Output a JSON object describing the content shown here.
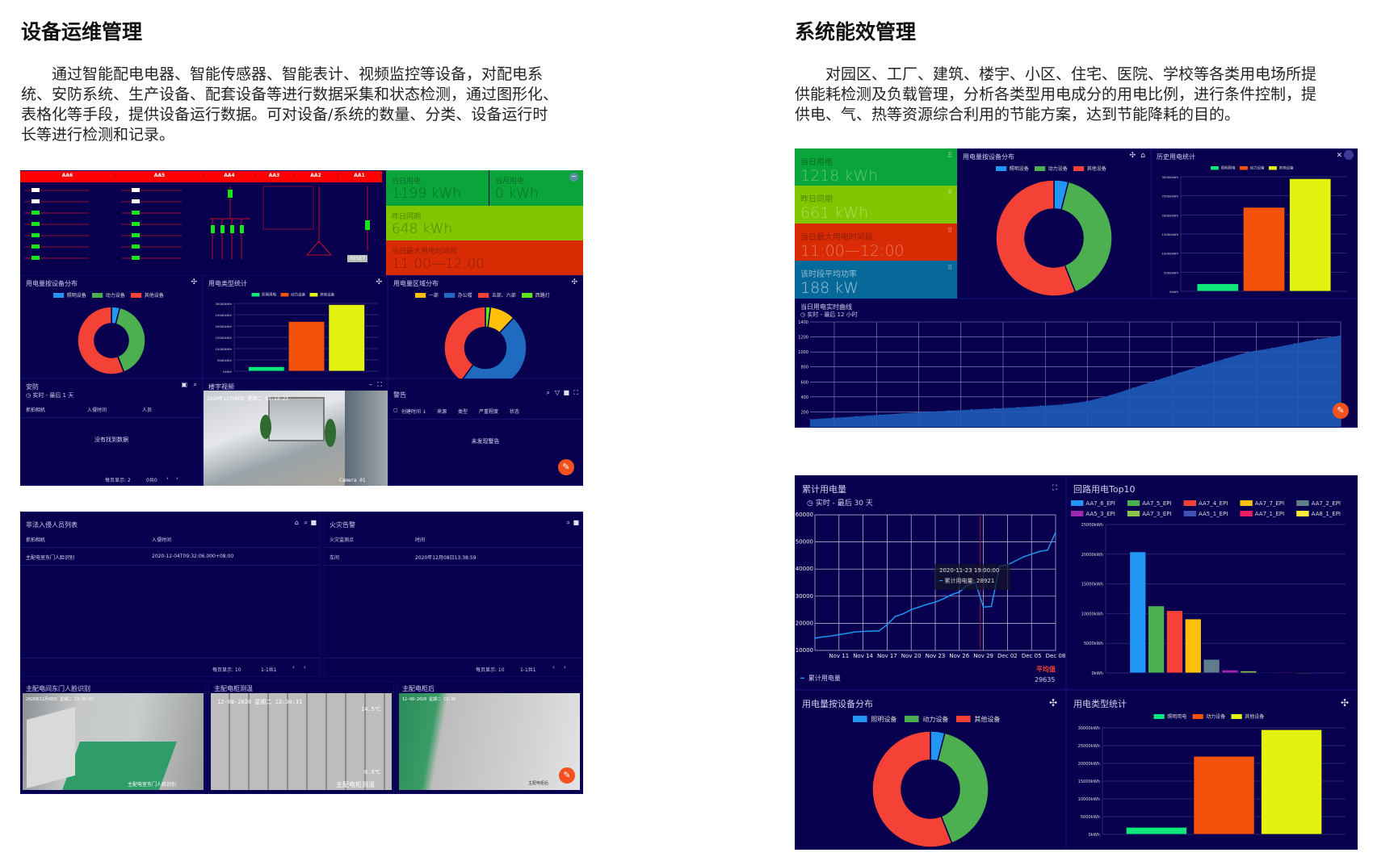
{
  "left": {
    "title": "设备运维管理",
    "paragraph": [
      "通过智能配电电器、智能传感器、智能表计、视频监控等设备，对配电系",
      "统、安防系统、生产设备、配套设备等进行数据采集和状态检测，通过图形化、",
      "表格化等手段，提供设备运行数据。可对设备/系统的数量、分类、设备运行时",
      "长等进行检测和记录。"
    ],
    "dashboard1": {
      "schematic_headers": [
        "AA6",
        "AA5",
        "AA4",
        "AA3",
        "AA2",
        "AA1"
      ],
      "schematic_reset": "RESET",
      "kpis": [
        {
          "label": "当日用电",
          "value": "1199 kWh"
        },
        {
          "label": "当月用电",
          "value": "0 kWh"
        },
        {
          "label": "昨日同期",
          "value": "648 kWh"
        },
        {
          "label": "当日最大用电时间段",
          "value": "11:00—12:00"
        }
      ],
      "panels": {
        "device_dist": "用电量按设备分布",
        "type_stats": "用电类型统计",
        "region_dist": "用电量区域分布",
        "security": {
          "title": "安防",
          "range": "实时 - 最后 1 天",
          "columns": [
            "抓拍相机",
            "入侵时间",
            "人员"
          ],
          "empty": "没有找到数据",
          "per_page": "每页显示: 2",
          "count": "0共0"
        },
        "video": {
          "title": "楼宇视频",
          "timestamp": "2020年12月08日 星期二 13:13:23",
          "camera": "Camera 01"
        },
        "alerts": {
          "title": "警告",
          "columns": [
            "创建时间 ↓",
            "来源",
            "类型",
            "严重程度",
            "状态"
          ],
          "empty": "未发现警告"
        }
      }
    },
    "dashboard2": {
      "intrusion": {
        "title": "非法入侵人员列表",
        "columns": [
          "抓拍相机",
          "入侵时间"
        ],
        "rows": [
          [
            "主配电室东门人脸识别",
            "2020-12-04T09:32:06.000+08:00"
          ]
        ],
        "per_page": "每页显示: 10",
        "range": "1-1共1"
      },
      "fire": {
        "title": "火灾告警",
        "columns": [
          "火灾监测点",
          "时间"
        ],
        "rows": [
          [
            "车间",
            "2020年12月08日13:38:59"
          ]
        ],
        "per_page": "每页显示: 10",
        "range": "1-1共1"
      },
      "cameras": [
        {
          "title": "主配电间东门人脸识别",
          "timestamp": "2020年12月08日 星期二 13:35:07",
          "caption": "主配电室东门人脸识别"
        },
        {
          "title": "主配电柜测温",
          "timestamp": "12-08-2020 星期二 13:34:31",
          "temp_high": "14.5℃",
          "temp_low": "6.9℃",
          "caption": "主配电柜测温"
        },
        {
          "title": "主配电柜后",
          "timestamp": "12-08-2020 星期二 13:36",
          "caption": "主配电柜后"
        }
      ]
    }
  },
  "right": {
    "title": "系统能效管理",
    "paragraph": [
      "对园区、工厂、建筑、楼宇、小区、住宅、医院、学校等各类用电场所提",
      "供能耗检测及负载管理，分析各类型用电成分的用电比例，进行条件控制，提",
      "供电、气、热等资源综合利用的节能方案，达到节能降耗的目的。"
    ],
    "dashboard1": {
      "kpis": [
        {
          "label": "当日用电",
          "value": "1218 kWh",
          "color": "#0aa53a"
        },
        {
          "label": "昨日同期",
          "value": "661 kWh",
          "color": "#80c700"
        },
        {
          "label": "当日最大用电时间段",
          "value": "11:00—12:00",
          "color": "#d92c05"
        },
        {
          "label": "该时段平均功率",
          "value": "188 kW",
          "color": "#06699a"
        }
      ],
      "device_dist": "用电量按设备分布",
      "history": "历史用电统计",
      "realtime": "当日用电实时曲线",
      "realtime_range": "实时 - 最后 12 小时"
    },
    "dashboard2": {
      "cumulative": "累计用电量",
      "cumulative_range": "实时 - 最后 30 天",
      "tooltip_time": "2020-11-23 19:00:00",
      "tooltip_label": "累计用电量:",
      "tooltip_value": "28921",
      "legend": "累计用电量",
      "avg_label": "平均值",
      "avg_value": "29635",
      "top10": "回路用电Top10",
      "device_dist": "用电量按设备分布",
      "type_stats": "用电类型统计"
    }
  },
  "colors": {
    "dashboard_bg": "#08004e",
    "fab": "#f4511e",
    "schematic_red": "#ff0000"
  },
  "chart_data": [
    {
      "id": "l-device",
      "type": "pie",
      "donut": true,
      "categories": [
        "照明设备",
        "动力设备",
        "其他设备"
      ],
      "values": [
        4,
        40,
        56
      ],
      "colors": [
        "#2196f3",
        "#4caf50",
        "#f44336"
      ],
      "legend": "top"
    },
    {
      "id": "l-type",
      "type": "bar",
      "categories": [
        "照明用电",
        "动力设备",
        "其他设备"
      ],
      "values": [
        2000,
        22000,
        29500
      ],
      "colors": [
        "#0ee87a",
        "#f4510b",
        "#e4f20f"
      ],
      "ylim": [
        0,
        30000
      ],
      "ytick_step": 5000,
      "yunit": "kWh",
      "legend": "top",
      "grid": true
    },
    {
      "id": "l-region",
      "type": "pie",
      "donut": true,
      "categories": [
        "一部",
        "办公楼",
        "五部、六部",
        "西路灯"
      ],
      "values": [
        10,
        48,
        40,
        2
      ],
      "colors": [
        "#ffc107",
        "#1e6bbf",
        "#f44336",
        "#5ee61c"
      ],
      "start_category": "西路灯",
      "legend": "top"
    },
    {
      "id": "r-device",
      "type": "pie",
      "donut": true,
      "categories": [
        "照明设备",
        "动力设备",
        "其他设备"
      ],
      "values": [
        4,
        40,
        56
      ],
      "colors": [
        "#2196f3",
        "#4caf50",
        "#f44336"
      ],
      "legend": "top"
    },
    {
      "id": "r-history",
      "type": "bar",
      "categories": [
        "照明用电",
        "动力设备",
        "其他设备"
      ],
      "values": [
        2000,
        22000,
        29500
      ],
      "colors": [
        "#0ee87a",
        "#f4510b",
        "#e4f20f"
      ],
      "ylim": [
        0,
        30000
      ],
      "ytick_step": 5000,
      "yunit": "kWh",
      "legend": "top",
      "grid": true
    },
    {
      "id": "r-realtime",
      "type": "area",
      "title": "当日用电实时曲线",
      "y": [
        100,
        120,
        140,
        160,
        180,
        200,
        215,
        230,
        245,
        260,
        280,
        300,
        340,
        420,
        520,
        620,
        720,
        820,
        910,
        1000,
        1050,
        1110,
        1170,
        1218
      ],
      "ylim": [
        0,
        1400
      ],
      "yticks": [
        200,
        400,
        600,
        800,
        1000,
        1200,
        1400
      ],
      "color": "#1e5bb8",
      "grid": true
    },
    {
      "id": "r-cumulative",
      "type": "line",
      "title": "累计用电量",
      "x": [
        "2020-11-08",
        "2020-11-09",
        "2020-11-10",
        "2020-11-11",
        "2020-11-12",
        "2020-11-13",
        "2020-11-14",
        "2020-11-15",
        "2020-11-16",
        "2020-11-17",
        "2020-11-18",
        "2020-11-19",
        "2020-11-20",
        "2020-11-21",
        "2020-11-22",
        "2020-11-23",
        "2020-11-24",
        "2020-11-25",
        "2020-11-26",
        "2020-11-27",
        "2020-11-28",
        "2020-11-29",
        "2020-11-30",
        "2020-12-01",
        "2020-12-02",
        "2020-12-03",
        "2020-12-04",
        "2020-12-05",
        "2020-12-06",
        "2020-12-07",
        "2020-12-08"
      ],
      "y": [
        14500,
        15000,
        15300,
        15800,
        16300,
        16800,
        17000,
        17100,
        17200,
        19500,
        22500,
        23500,
        25000,
        26000,
        27000,
        27800,
        29000,
        30500,
        31500,
        34000,
        35000,
        26000,
        26200,
        41000,
        41500,
        43000,
        44500,
        45500,
        46500,
        47000,
        53500
      ],
      "ylim": [
        10000,
        60000
      ],
      "ytick_step": 10000,
      "xticks": [
        "Nov 11",
        "Nov 14",
        "Nov 17",
        "Nov 20",
        "Nov 23",
        "Nov 26",
        "Nov 29",
        "Dec 02",
        "Dec 05",
        "Dec 08"
      ],
      "color": "#2196f3",
      "series_name": "累计用电量",
      "grid": true,
      "legend": "bottom-left"
    },
    {
      "id": "r-top10",
      "type": "bar",
      "title": "回路用电Top10",
      "categories": [
        "AA7_6_EPI",
        "AA7_5_EPI",
        "AA7_4_EPI",
        "AA7_7_EPI",
        "AA7_2_EPI",
        "AA5_3_EPI",
        "AA7_3_EPI",
        "AA5_1_EPI",
        "AA7_1_EPI",
        "AA8_1_EPI"
      ],
      "values": [
        20400,
        11300,
        10500,
        9100,
        2300,
        500,
        350,
        100,
        80,
        60
      ],
      "colors": [
        "#2196f3",
        "#4caf50",
        "#f44336",
        "#ffc107",
        "#607d8b",
        "#9c27b0",
        "#8bc34a",
        "#3f51b5",
        "#e91e63",
        "#ffeb3b"
      ],
      "ylim": [
        0,
        25000
      ],
      "ytick_step": 5000,
      "yunit": "kWh",
      "legend": "top",
      "grid": true
    },
    {
      "id": "r-device2",
      "type": "pie",
      "donut": true,
      "categories": [
        "照明设备",
        "动力设备",
        "其他设备"
      ],
      "values": [
        4,
        40,
        56
      ],
      "colors": [
        "#2196f3",
        "#4caf50",
        "#f44336"
      ],
      "legend": "top"
    },
    {
      "id": "r-type2",
      "type": "bar",
      "categories": [
        "照明用电",
        "动力设备",
        "其他设备"
      ],
      "values": [
        2000,
        22000,
        29500
      ],
      "colors": [
        "#0ee87a",
        "#f4510b",
        "#e4f20f"
      ],
      "ylim": [
        0,
        30000
      ],
      "ytick_step": 5000,
      "yunit": "kWh",
      "legend": "top",
      "grid": true
    }
  ]
}
